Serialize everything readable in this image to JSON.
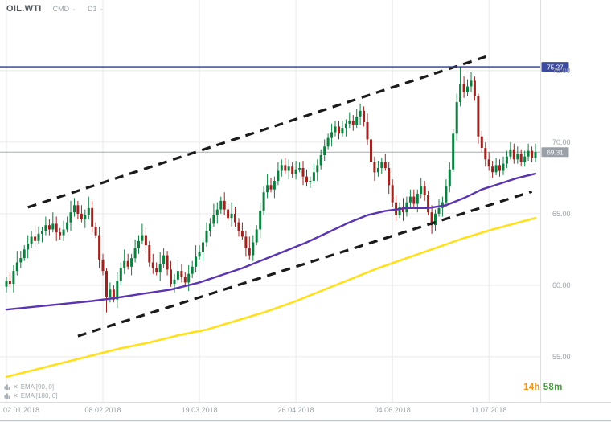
{
  "header": {
    "symbol": "OIL.WTI",
    "market": "CMD",
    "timeframe": "D1"
  },
  "icons": {
    "caret": "⌄",
    "remove": "✕"
  },
  "legend": {
    "items": [
      {
        "label": "EMA [90, 0]"
      },
      {
        "label": "EMA [180, 0]"
      }
    ]
  },
  "countdown": {
    "hours": "14h",
    "minutes": "58m"
  },
  "colors": {
    "up": "#0d8040",
    "down": "#9c2420",
    "ema90": "#5b35b1",
    "ema180": "#ffe01a",
    "trendline": "#1b1b1b",
    "grid": "#e9e9e9",
    "border": "#dedede",
    "window_edge": "#bcc8d2",
    "axis_text": "#9aa0a5",
    "resistance_line": "#2c3b8e",
    "resistance_badge": "#3c4aa0",
    "current_line": "#a8adb3",
    "current_badge": "#9aa0a7",
    "badge_text": "#ffffff"
  },
  "chart_data": {
    "type": "candlestick",
    "symbol": "OIL.WTI",
    "timeframe": "D1",
    "grid": true,
    "price_range": {
      "min": 51.85,
      "max": 79.94
    },
    "y_ticks": [
      {
        "value": 75,
        "label": "75.00"
      },
      {
        "value": 70,
        "label": "70.00"
      },
      {
        "value": 65,
        "label": "65.00"
      },
      {
        "value": 60,
        "label": "60.00"
      },
      {
        "value": 55,
        "label": "55.00"
      }
    ],
    "x_ticks": [
      {
        "bar": 0,
        "label": "02.01.2018"
      },
      {
        "bar": 27,
        "label": "08.02.2018"
      },
      {
        "bar": 54,
        "label": "19.03.2018"
      },
      {
        "bar": 81,
        "label": "26.04.2018"
      },
      {
        "bar": 108,
        "label": "04.06.2018"
      },
      {
        "bar": 135,
        "label": "11.07.2018"
      }
    ],
    "candles": [
      [
        59.9,
        60.6,
        59.5,
        60.3
      ],
      [
        60.3,
        60.9,
        59.9,
        60.1
      ],
      [
        60.1,
        61.4,
        59.5,
        61.0
      ],
      [
        61.0,
        62.4,
        60.7,
        61.6
      ],
      [
        61.6,
        62.4,
        61.2,
        61.9
      ],
      [
        61.9,
        62.8,
        61.7,
        62.5
      ],
      [
        62.5,
        63.5,
        61.9,
        62.9
      ],
      [
        62.9,
        63.8,
        62.6,
        63.4
      ],
      [
        63.4,
        64.2,
        62.7,
        63.1
      ],
      [
        63.1,
        64.1,
        62.9,
        63.6
      ],
      [
        63.6,
        64.1,
        63.0,
        63.8
      ],
      [
        63.8,
        64.8,
        63.5,
        64.2
      ],
      [
        64.2,
        64.6,
        63.5,
        63.9
      ],
      [
        63.9,
        65.1,
        63.7,
        64.3
      ],
      [
        64.3,
        64.8,
        63.1,
        63.7
      ],
      [
        63.7,
        64.0,
        63.2,
        63.5
      ],
      [
        63.5,
        64.5,
        63.1,
        63.9
      ],
      [
        63.9,
        64.8,
        63.7,
        64.4
      ],
      [
        64.4,
        65.9,
        63.8,
        65.1
      ],
      [
        65.1,
        66.1,
        64.8,
        65.6
      ],
      [
        65.6,
        65.9,
        64.6,
        65.0
      ],
      [
        65.0,
        65.6,
        64.4,
        64.6
      ],
      [
        64.6,
        65.3,
        64.0,
        64.9
      ],
      [
        64.9,
        66.2,
        64.6,
        65.4
      ],
      [
        65.4,
        65.9,
        63.7,
        64.1
      ],
      [
        64.1,
        64.4,
        63.3,
        63.5
      ],
      [
        63.5,
        64.1,
        61.2,
        61.8
      ],
      [
        61.8,
        62.2,
        60.7,
        61.0
      ],
      [
        61.0,
        61.2,
        58.1,
        59.2
      ],
      [
        59.2,
        60.2,
        58.8,
        59.7
      ],
      [
        59.7,
        60.0,
        58.8,
        59.0
      ],
      [
        59.0,
        60.9,
        58.4,
        60.3
      ],
      [
        60.3,
        61.6,
        60.0,
        61.2
      ],
      [
        61.2,
        62.5,
        60.8,
        61.7
      ],
      [
        61.7,
        62.2,
        61.1,
        61.3
      ],
      [
        61.3,
        62.2,
        60.7,
        61.9
      ],
      [
        61.9,
        63.2,
        61.6,
        62.6
      ],
      [
        62.6,
        63.5,
        62.2,
        63.1
      ],
      [
        63.1,
        64.3,
        62.9,
        63.5
      ],
      [
        63.5,
        64.0,
        62.2,
        62.8
      ],
      [
        62.8,
        63.1,
        61.3,
        61.6
      ],
      [
        61.6,
        62.2,
        60.8,
        61.2
      ],
      [
        61.2,
        61.6,
        60.7,
        60.9
      ],
      [
        60.9,
        62.3,
        60.3,
        61.5
      ],
      [
        61.5,
        62.6,
        61.2,
        62.1
      ],
      [
        62.1,
        62.4,
        60.7,
        61.1
      ],
      [
        61.1,
        61.7,
        59.9,
        60.1
      ],
      [
        60.1,
        60.8,
        59.5,
        60.4
      ],
      [
        60.4,
        61.8,
        60.1,
        61.0
      ],
      [
        61.0,
        61.5,
        60.2,
        60.6
      ],
      [
        60.6,
        60.9,
        60.0,
        60.2
      ],
      [
        60.2,
        61.4,
        59.6,
        60.8
      ],
      [
        60.8,
        61.7,
        60.5,
        61.3
      ],
      [
        61.3,
        62.8,
        60.9,
        62.0
      ],
      [
        62.0,
        62.8,
        61.8,
        62.3
      ],
      [
        62.3,
        63.3,
        61.7,
        63.0
      ],
      [
        63.0,
        64.4,
        62.7,
        63.8
      ],
      [
        63.8,
        64.7,
        63.4,
        64.3
      ],
      [
        64.3,
        65.7,
        64.1,
        64.9
      ],
      [
        64.9,
        65.8,
        64.3,
        65.3
      ],
      [
        65.3,
        66.2,
        65.0,
        65.9
      ],
      [
        65.9,
        66.5,
        64.9,
        65.3
      ],
      [
        65.3,
        65.7,
        64.5,
        64.7
      ],
      [
        64.7,
        65.8,
        64.1,
        65.0
      ],
      [
        65.0,
        65.5,
        64.1,
        64.4
      ],
      [
        64.4,
        64.7,
        63.4,
        63.8
      ],
      [
        63.8,
        64.4,
        63.2,
        63.4
      ],
      [
        63.4,
        63.8,
        62.0,
        62.6
      ],
      [
        62.6,
        63.4,
        61.8,
        62.1
      ],
      [
        62.1,
        63.5,
        61.7,
        63.0
      ],
      [
        63.0,
        64.2,
        62.8,
        63.9
      ],
      [
        63.9,
        65.8,
        63.3,
        65.2
      ],
      [
        65.2,
        66.9,
        64.9,
        66.5
      ],
      [
        66.5,
        67.8,
        66.1,
        67.0
      ],
      [
        67.0,
        67.5,
        66.5,
        66.7
      ],
      [
        66.7,
        67.6,
        66.1,
        67.3
      ],
      [
        67.3,
        68.6,
        67.0,
        68.0
      ],
      [
        68.0,
        68.8,
        67.6,
        68.4
      ],
      [
        68.4,
        68.9,
        67.8,
        68.0
      ],
      [
        68.0,
        68.8,
        67.4,
        68.3
      ],
      [
        68.3,
        68.6,
        67.5,
        67.8
      ],
      [
        67.8,
        68.7,
        67.4,
        68.1
      ],
      [
        68.1,
        68.6,
        67.9,
        68.2
      ],
      [
        68.2,
        68.7,
        67.0,
        67.6
      ],
      [
        67.6,
        68.1,
        66.9,
        67.2
      ],
      [
        67.2,
        67.6,
        66.8,
        67.3
      ],
      [
        67.3,
        68.5,
        67.1,
        67.9
      ],
      [
        67.9,
        68.8,
        67.3,
        68.4
      ],
      [
        68.4,
        69.5,
        68.1,
        69.1
      ],
      [
        69.1,
        70.2,
        68.7,
        69.7
      ],
      [
        69.7,
        70.6,
        69.5,
        70.3
      ],
      [
        70.3,
        71.3,
        69.7,
        70.7
      ],
      [
        70.7,
        71.5,
        70.4,
        71.1
      ],
      [
        71.1,
        71.5,
        70.2,
        70.6
      ],
      [
        70.6,
        71.5,
        70.4,
        71.0
      ],
      [
        71.0,
        71.6,
        70.4,
        71.3
      ],
      [
        71.3,
        72.1,
        71.0,
        71.5
      ],
      [
        71.5,
        71.9,
        70.8,
        71.2
      ],
      [
        71.2,
        72.3,
        71.0,
        71.8
      ],
      [
        71.8,
        72.7,
        71.2,
        72.2
      ],
      [
        72.2,
        72.5,
        71.1,
        71.4
      ],
      [
        71.4,
        72.0,
        69.8,
        70.2
      ],
      [
        70.2,
        70.6,
        68.4,
        68.6
      ],
      [
        68.6,
        69.0,
        67.3,
        67.9
      ],
      [
        67.9,
        68.7,
        67.6,
        68.2
      ],
      [
        68.2,
        68.9,
        67.8,
        68.6
      ],
      [
        68.6,
        69.2,
        68.0,
        68.2
      ],
      [
        68.2,
        68.6,
        66.4,
        67.0
      ],
      [
        67.0,
        67.4,
        65.5,
        65.8
      ],
      [
        65.8,
        66.3,
        64.5,
        64.9
      ],
      [
        64.9,
        65.8,
        64.7,
        65.5
      ],
      [
        65.5,
        66.1,
        64.5,
        65.1
      ],
      [
        65.1,
        66.2,
        64.8,
        65.8
      ],
      [
        65.8,
        66.7,
        65.4,
        66.2
      ],
      [
        66.2,
        66.7,
        65.5,
        65.7
      ],
      [
        65.7,
        66.7,
        65.1,
        66.4
      ],
      [
        66.4,
        67.5,
        66.1,
        66.9
      ],
      [
        66.9,
        67.3,
        65.9,
        66.3
      ],
      [
        66.3,
        66.6,
        64.9,
        65.1
      ],
      [
        65.1,
        65.6,
        63.6,
        64.2
      ],
      [
        64.2,
        65.3,
        63.8,
        65.0
      ],
      [
        65.0,
        66.0,
        64.8,
        65.4
      ],
      [
        65.4,
        66.2,
        64.8,
        65.8
      ],
      [
        65.8,
        67.4,
        65.5,
        66.9
      ],
      [
        66.9,
        68.6,
        66.5,
        68.1
      ],
      [
        68.1,
        70.9,
        67.9,
        70.6
      ],
      [
        70.6,
        73.4,
        70.1,
        72.8
      ],
      [
        72.8,
        75.27,
        72.5,
        74.1
      ],
      [
        74.1,
        74.6,
        73.1,
        73.5
      ],
      [
        73.5,
        74.4,
        73.2,
        73.9
      ],
      [
        73.9,
        74.9,
        73.5,
        74.3
      ],
      [
        74.3,
        74.6,
        72.9,
        73.2
      ],
      [
        73.2,
        73.4,
        69.9,
        70.4
      ],
      [
        70.4,
        70.8,
        69.3,
        69.6
      ],
      [
        69.6,
        70.0,
        68.3,
        68.8
      ],
      [
        68.8,
        69.3,
        68.0,
        68.3
      ],
      [
        68.3,
        68.7,
        67.5,
        67.9
      ],
      [
        67.9,
        68.9,
        67.7,
        68.4
      ],
      [
        68.4,
        68.8,
        67.6,
        68.0
      ],
      [
        68.0,
        69.0,
        67.7,
        68.5
      ],
      [
        68.5,
        69.4,
        68.2,
        69.0
      ],
      [
        69.0,
        70.0,
        68.8,
        69.5
      ],
      [
        69.5,
        69.9,
        68.5,
        68.8
      ],
      [
        68.8,
        69.7,
        68.5,
        69.2
      ],
      [
        69.2,
        69.5,
        68.3,
        68.6
      ],
      [
        68.6,
        69.4,
        68.3,
        69.0
      ],
      [
        69.0,
        69.9,
        68.7,
        69.4
      ],
      [
        69.4,
        69.7,
        68.6,
        68.9
      ],
      [
        68.9,
        69.9,
        68.6,
        69.31
      ]
    ],
    "overlays": {
      "ema90": {
        "name": "EMA [90, 0]",
        "points": [
          [
            0,
            58.3
          ],
          [
            8,
            58.5
          ],
          [
            16,
            58.7
          ],
          [
            24,
            58.9
          ],
          [
            30,
            59.1
          ],
          [
            38,
            59.4
          ],
          [
            46,
            59.7
          ],
          [
            54,
            60.2
          ],
          [
            60,
            60.7
          ],
          [
            66,
            61.2
          ],
          [
            72,
            61.8
          ],
          [
            78,
            62.4
          ],
          [
            84,
            63.0
          ],
          [
            90,
            63.7
          ],
          [
            96,
            64.4
          ],
          [
            101,
            64.9
          ],
          [
            106,
            65.2
          ],
          [
            112,
            65.4
          ],
          [
            118,
            65.4
          ],
          [
            123,
            65.6
          ],
          [
            128,
            66.1
          ],
          [
            133,
            66.7
          ],
          [
            138,
            67.1
          ],
          [
            143,
            67.5
          ],
          [
            148,
            67.8
          ]
        ]
      },
      "ema180": {
        "name": "EMA [180, 0]",
        "points": [
          [
            0,
            53.6
          ],
          [
            8,
            54.1
          ],
          [
            16,
            54.6
          ],
          [
            24,
            55.1
          ],
          [
            32,
            55.6
          ],
          [
            40,
            56.0
          ],
          [
            48,
            56.5
          ],
          [
            56,
            56.9
          ],
          [
            64,
            57.5
          ],
          [
            72,
            58.1
          ],
          [
            80,
            58.8
          ],
          [
            88,
            59.6
          ],
          [
            96,
            60.4
          ],
          [
            104,
            61.2
          ],
          [
            112,
            61.9
          ],
          [
            120,
            62.6
          ],
          [
            128,
            63.3
          ],
          [
            136,
            63.9
          ],
          [
            142,
            64.3
          ],
          [
            148,
            64.7
          ]
        ]
      },
      "trendlines": [
        {
          "from": [
            6,
            65.45
          ],
          "to": [
            135,
            76.05
          ]
        },
        {
          "from": [
            20,
            56.45
          ],
          "to": [
            147,
            66.55
          ]
        }
      ],
      "resistance": {
        "price": 75.27,
        "label": "75.27"
      },
      "current_price": {
        "price": 69.31,
        "label": "69.31"
      }
    }
  }
}
